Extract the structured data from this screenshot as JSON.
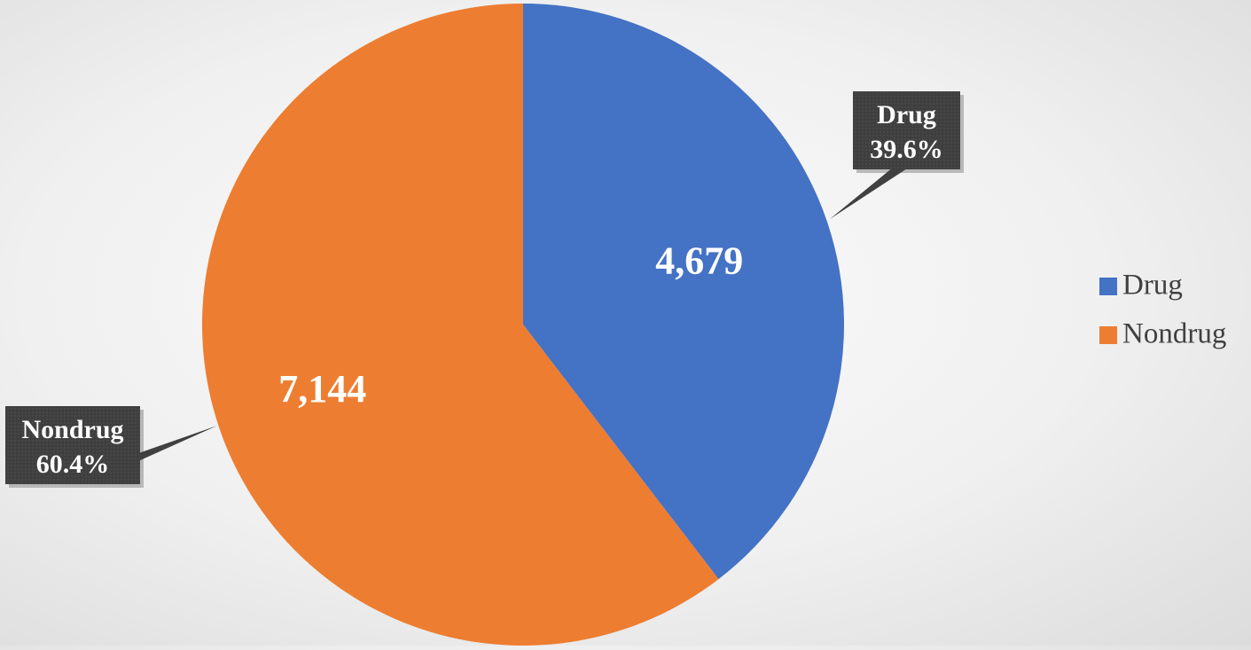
{
  "chart_data": {
    "type": "pie",
    "title": "",
    "series": [
      {
        "values": [
          4679,
          7144
        ],
        "value_labels": [
          "4,679",
          "7,144"
        ],
        "percent_labels": [
          "39.6%",
          "60.4%"
        ]
      }
    ],
    "categories": [
      "Drug",
      "Nondrug"
    ],
    "colors": [
      "#4472C4",
      "#ED7D31"
    ],
    "start": "12 o'clock",
    "direction": "clockwise",
    "legend": {
      "position": "right",
      "entries": [
        "Drug",
        "Nondrug"
      ]
    },
    "callout_style": {
      "fill": "#404040",
      "text_color": "#ffffff"
    },
    "value_label_color": "#ffffff"
  }
}
